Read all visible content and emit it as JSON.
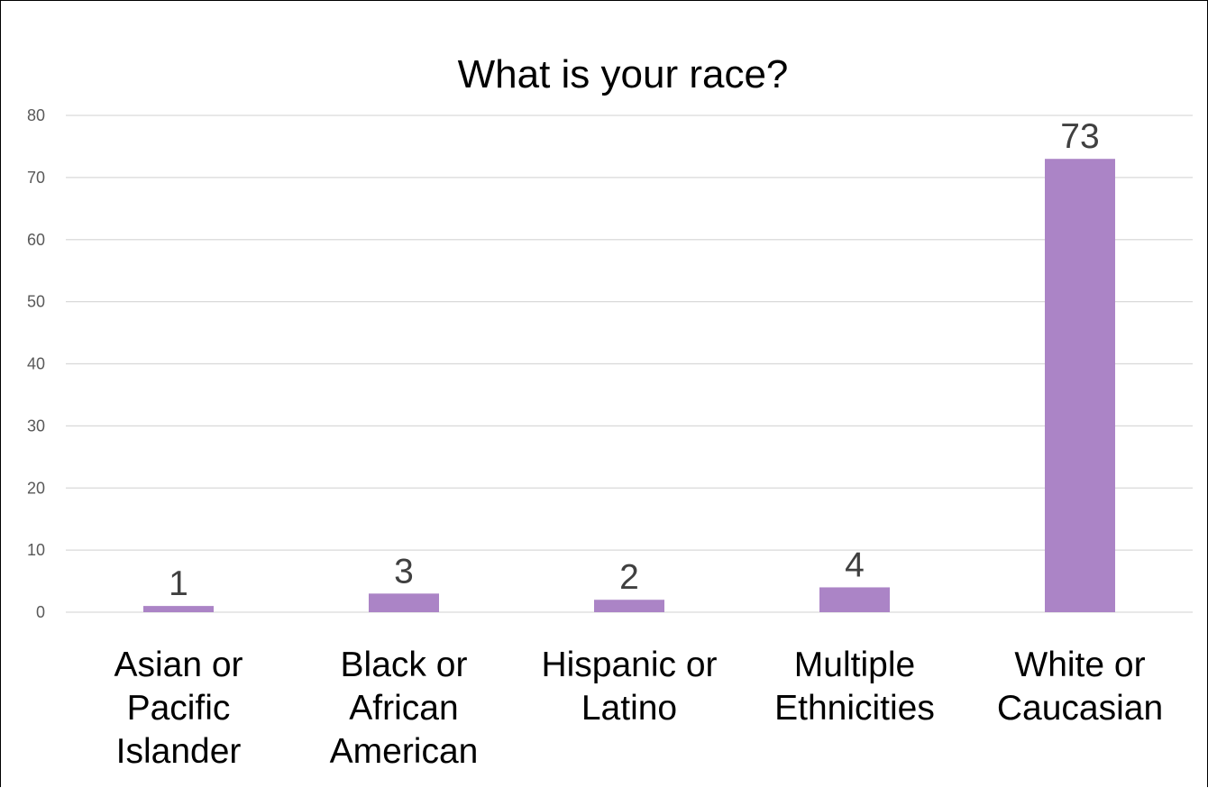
{
  "chart_data": {
    "type": "bar",
    "title": "What is your race?",
    "xlabel": "",
    "ylabel": "",
    "categories": [
      "Asian or Pacific Islander",
      "Black or African American",
      "Hispanic or Latino",
      "Multiple Ethnicities",
      "White or Caucasian"
    ],
    "category_lines": [
      [
        "Asian or",
        "Pacific",
        "Islander"
      ],
      [
        "Black or",
        "African",
        "American"
      ],
      [
        "Hispanic or",
        "Latino"
      ],
      [
        "Multiple",
        "Ethnicities"
      ],
      [
        "White or",
        "Caucasian"
      ]
    ],
    "values": [
      1,
      3,
      2,
      4,
      73
    ],
    "data_labels": [
      "1",
      "3",
      "2",
      "4",
      "73"
    ],
    "ylim": [
      0,
      80
    ],
    "yticks": [
      0,
      10,
      20,
      30,
      40,
      50,
      60,
      70,
      80
    ],
    "grid": true,
    "legend": "none",
    "bar_color": "#ab84c6",
    "grid_color": "#d9d9d9"
  }
}
